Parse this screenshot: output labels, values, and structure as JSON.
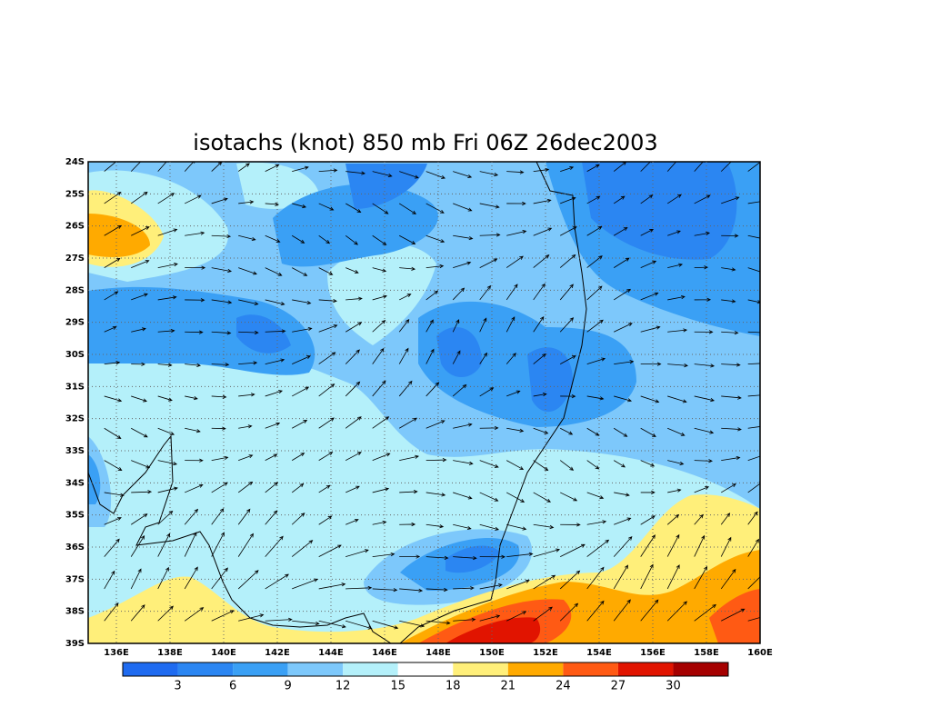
{
  "map": {
    "title": "isotachs (knot) 850 mb Fri 06Z 26dec2003",
    "lat_labels": [
      "24S",
      "25S",
      "26S",
      "27S",
      "28S",
      "29S",
      "30S",
      "31S",
      "32S",
      "33S",
      "34S",
      "35S",
      "36S",
      "37S",
      "38S",
      "39S"
    ],
    "lon_labels": [
      "136E",
      "138E",
      "140E",
      "142E",
      "144E",
      "146E",
      "148E",
      "150E",
      "152E",
      "154E",
      "156E",
      "158E",
      "160E"
    ],
    "legend": {
      "labels": [
        3,
        6,
        9,
        12,
        15,
        18,
        21,
        24,
        27,
        30
      ],
      "colors": [
        "#1f6bf0",
        "#2b86f2",
        "#3aa0f5",
        "#7dc8fb",
        "#b4f0fa",
        "#ffffff",
        "#ffef7a",
        "#ffaa00",
        "#ff5a14",
        "#e11400",
        "#a50000"
      ]
    }
  }
}
